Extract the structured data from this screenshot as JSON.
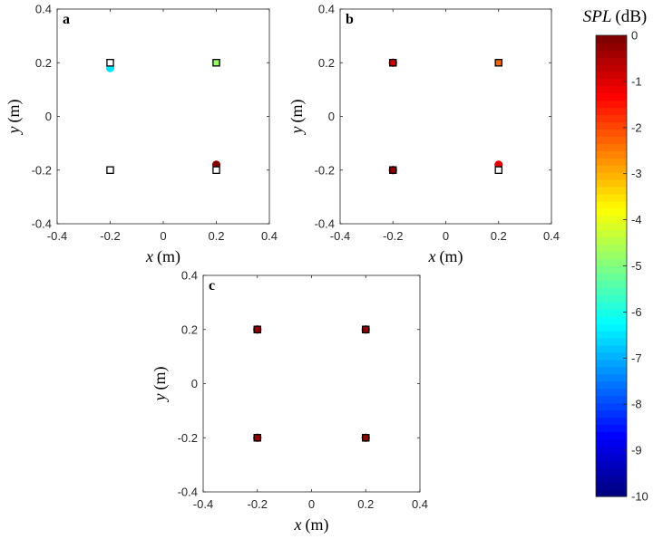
{
  "chart_data": {
    "type": "scatter",
    "colorbar": {
      "title_italic": "SPL",
      "title_unit": "(dB)",
      "range": [
        -10,
        0
      ],
      "ticks": [
        "0",
        "-1",
        "-2",
        "-3",
        "-4",
        "-5",
        "-6",
        "-7",
        "-8",
        "-9",
        "-10"
      ],
      "tick_values": [
        0,
        -1,
        -2,
        -3,
        -4,
        -5,
        -6,
        -7,
        -8,
        -9,
        -10
      ],
      "colormap": "jet",
      "levels": 64
    },
    "panels": [
      {
        "label": "a",
        "xlabel_italic": "x",
        "xlabel_unit": "(m)",
        "ylabel_italic": "y",
        "ylabel_unit": "(m)",
        "xlim": [
          -0.4,
          0.4
        ],
        "ylim": [
          -0.4,
          0.4
        ],
        "xticks": [
          "-0.4",
          "-0.2",
          "0",
          "0.2",
          "0.4"
        ],
        "yticks": [
          "-0.4",
          "-0.2",
          "0",
          "0.2",
          "0.4"
        ],
        "sources": [
          {
            "x": -0.2,
            "y": 0.18,
            "spl": -6.5
          },
          {
            "x": 0.2,
            "y": -0.18,
            "spl": 0
          }
        ],
        "targets": [
          {
            "x": -0.2,
            "y": 0.2,
            "spl": null
          },
          {
            "x": 0.2,
            "y": 0.2,
            "spl": -4.8
          },
          {
            "x": -0.2,
            "y": -0.2,
            "spl": null
          },
          {
            "x": 0.2,
            "y": -0.2,
            "spl": null
          }
        ]
      },
      {
        "label": "b",
        "xlabel_italic": "x",
        "xlabel_unit": "(m)",
        "ylabel_italic": "y",
        "ylabel_unit": "(m)",
        "xlim": [
          -0.4,
          0.4
        ],
        "ylim": [
          -0.4,
          0.4
        ],
        "xticks": [
          "-0.4",
          "-0.2",
          "0",
          "0.2",
          "0.4"
        ],
        "yticks": [
          "-0.4",
          "-0.2",
          "0",
          "0.2",
          "0.4"
        ],
        "sources": [
          {
            "x": -0.2,
            "y": 0.2,
            "spl": -0.8
          },
          {
            "x": -0.2,
            "y": -0.2,
            "spl": -0.2
          },
          {
            "x": 0.2,
            "y": -0.18,
            "spl": -0.9
          }
        ],
        "targets": [
          {
            "x": -0.2,
            "y": 0.2,
            "spl": -0.8
          },
          {
            "x": 0.2,
            "y": 0.2,
            "spl": -2.3
          },
          {
            "x": -0.2,
            "y": -0.2,
            "spl": -0.2
          },
          {
            "x": 0.2,
            "y": -0.2,
            "spl": null
          }
        ]
      },
      {
        "label": "c",
        "xlabel_italic": "x",
        "xlabel_unit": "(m)",
        "ylabel_italic": "y",
        "ylabel_unit": "(m)",
        "xlim": [
          -0.4,
          0.4
        ],
        "ylim": [
          -0.4,
          0.4
        ],
        "xticks": [
          "-0.4",
          "-0.2",
          "0",
          "0.2",
          "0.4"
        ],
        "yticks": [
          "-0.4",
          "-0.2",
          "0",
          "0.2",
          "0.4"
        ],
        "sources": [
          {
            "x": -0.2,
            "y": 0.2,
            "spl": -0.1
          },
          {
            "x": 0.2,
            "y": 0.2,
            "spl": -0.1
          },
          {
            "x": -0.2,
            "y": -0.2,
            "spl": -0.1
          },
          {
            "x": 0.2,
            "y": -0.2,
            "spl": -0.1
          }
        ],
        "targets": [
          {
            "x": -0.2,
            "y": 0.2,
            "spl": -0.2
          },
          {
            "x": 0.2,
            "y": 0.2,
            "spl": -0.2
          },
          {
            "x": -0.2,
            "y": -0.2,
            "spl": -0.2
          },
          {
            "x": 0.2,
            "y": -0.2,
            "spl": -0.2
          }
        ]
      }
    ]
  }
}
